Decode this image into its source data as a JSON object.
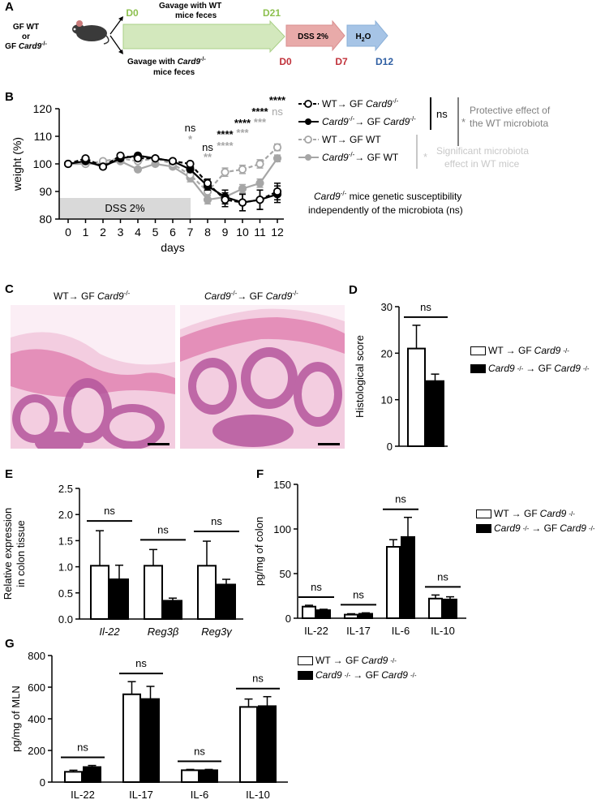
{
  "panel_labels": {
    "a": "A",
    "b": "B",
    "c": "C",
    "d": "D",
    "e": "E",
    "f": "F",
    "g": "G"
  },
  "panel_a": {
    "group_line1": "GF WT",
    "group_line2": "or",
    "group_line3_prefix": "GF ",
    "group_line3_gene": "Card9",
    "group_line3_sup": "-/-",
    "gavage_wt_line1": "Gavage with WT",
    "gavage_wt_line2": "mice feces",
    "gavage_ko_line1_prefix": "Gavage with ",
    "gavage_ko_line1_gene": "Card9",
    "gavage_ko_line1_sup": "-/-",
    "gavage_ko_line2": "mice feces",
    "d0_green": "D0",
    "d21_green": "D21",
    "dss_label": "DSS 2%",
    "h2o_main": "H",
    "h2o_sub": "2",
    "h2o_end": "O",
    "d0_red": "D0",
    "d7_red": "D7",
    "d12_blue": "D12",
    "colors": {
      "green": "#8dc04f",
      "green_fill": "#d3e8bd",
      "red": "#c0313a",
      "red_fill": "#e8aaa9",
      "blue": "#2f5fa3",
      "blue_fill": "#a6c4e6"
    }
  },
  "panel_b": {
    "legend": [
      {
        "pre": "WT",
        "arrow": "→ GF ",
        "gene": "Card9",
        "sup": "-/-",
        "style": "dashed-open-black"
      },
      {
        "pre": "",
        "gene_pre": "Card9",
        "sup_pre": "-/-",
        "arrow": "→ GF ",
        "gene": "Card9",
        "sup": "-/-",
        "style": "solid-filled-black"
      },
      {
        "pre": "WT",
        "arrow": "→ GF WT",
        "style": "dashed-open-grey"
      },
      {
        "gene_pre": "Card9",
        "sup_pre": "-/-",
        "arrow": "→ GF WT",
        "style": "solid-filled-grey"
      }
    ],
    "ns_label": "ns",
    "star": "*",
    "protective_line1": "Protective effect of",
    "protective_line2": "the WT microbiota",
    "significant_line1": "Significant microbiota",
    "significant_line2": "effect in WT mice",
    "genetic_line1_gene": "Card9",
    "genetic_line1_sup": "-/-",
    "genetic_line1_rest": " mice genetic susceptibility",
    "genetic_line2": "independently of the microbiota (ns)",
    "dss_bar_label": "DSS 2%",
    "black_sig": [
      "ns",
      "ns",
      "****",
      "****",
      "****",
      "****"
    ],
    "grey_sig": [
      "*",
      "**",
      "****",
      "***",
      "***",
      "ns"
    ]
  },
  "panel_c": {
    "left_pre": "WT",
    "left_arrow": "→ GF ",
    "left_gene": "Card9",
    "left_sup": "-/-",
    "right_gene_pre": "Card9",
    "right_sup_pre": "-/-",
    "right_arrow": "→ GF ",
    "right_gene": "Card9",
    "right_sup": "-/-"
  },
  "legend_groups": {
    "open_pre": "WT",
    "open_arrow": "→ GF ",
    "gene": "Card9",
    "sup": "-/-",
    "filled_arrow": "→ GF "
  },
  "chart_data": [
    {
      "id": "B",
      "type": "line",
      "xlabel": "days",
      "ylabel": "weight (%)",
      "x": [
        0,
        1,
        2,
        3,
        4,
        5,
        6,
        7,
        8,
        9,
        10,
        11,
        12
      ],
      "ylim": [
        80,
        120
      ],
      "yticks": [
        80,
        90,
        100,
        110,
        120
      ],
      "series": [
        {
          "name": "WT→ GF Card9-/-",
          "values": [
            100,
            102,
            99,
            103,
            102,
            102,
            101,
            100,
            93,
            87,
            86,
            87,
            90
          ],
          "err": [
            0.5,
            0.6,
            0.8,
            0.8,
            0.8,
            0.6,
            0.8,
            0.8,
            1.5,
            2.5,
            3,
            3.5,
            3
          ]
        },
        {
          "name": "Card9-/-→ GF Card9-/-",
          "values": [
            100,
            101,
            99,
            102,
            103,
            102,
            101,
            98,
            92,
            88,
            86,
            87,
            89
          ],
          "err": [
            0.5,
            0.6,
            0.8,
            0.8,
            0.8,
            0.6,
            0.8,
            0.8,
            1.5,
            2.5,
            3,
            3.5,
            3
          ]
        },
        {
          "name": "WT→ GF WT",
          "values": [
            100,
            100,
            101,
            102,
            101,
            102,
            100,
            96,
            90,
            97,
            98,
            100,
            106
          ],
          "err": [
            0.5,
            0.6,
            0.8,
            0.8,
            0.8,
            0.6,
            0.8,
            1.5,
            1.5,
            1.5,
            1.5,
            1.5,
            1.2
          ]
        },
        {
          "name": "Card9-/-→ GF WT",
          "values": [
            100,
            100,
            100,
            101,
            98,
            100,
            99,
            95,
            87,
            88,
            91,
            93,
            102
          ],
          "err": [
            0.5,
            0.6,
            0.8,
            0.8,
            0.8,
            0.6,
            0.8,
            1.5,
            1.5,
            1.5,
            1.5,
            1.5,
            1.2
          ]
        }
      ]
    },
    {
      "id": "D",
      "type": "bar",
      "ylabel": "Histological score",
      "ylim": [
        0,
        30
      ],
      "yticks": [
        0,
        10,
        20,
        30
      ],
      "categories": [
        ""
      ],
      "series": [
        {
          "name": "WT→ GF Card9-/-",
          "values": [
            21
          ],
          "err": [
            5
          ]
        },
        {
          "name": "Card9-/-→ GF Card9-/-",
          "values": [
            14
          ],
          "err": [
            1.5
          ]
        }
      ],
      "sig": [
        "ns"
      ]
    },
    {
      "id": "E",
      "type": "bar",
      "ylabel_line1": "Relative expression",
      "ylabel_line2": "in colon tissue",
      "ylim": [
        0,
        2.5
      ],
      "yticks": [
        "0.0",
        "0.5",
        "1.0",
        "1.5",
        "2.0",
        "2.5"
      ],
      "categories": [
        "Il-22",
        "Reg3β",
        "Reg3γ"
      ],
      "series": [
        {
          "name": "WT→ GF Card9-/-",
          "values": [
            1.02,
            1.02,
            1.02
          ],
          "err": [
            0.67,
            0.31,
            0.47
          ]
        },
        {
          "name": "Card9-/-→ GF Card9-/-",
          "values": [
            0.76,
            0.35,
            0.66
          ],
          "err": [
            0.27,
            0.05,
            0.1
          ]
        }
      ],
      "sig": [
        "ns",
        "ns",
        "ns"
      ]
    },
    {
      "id": "F",
      "type": "bar",
      "ylabel": "pg/mg of colon",
      "ylim": [
        0,
        150
      ],
      "yticks": [
        0,
        50,
        100,
        150
      ],
      "categories": [
        "IL-22",
        "IL-17",
        "IL-6",
        "IL-10"
      ],
      "series": [
        {
          "name": "WT→ GF Card9-/-",
          "values": [
            13,
            4,
            80,
            22
          ],
          "err": [
            1.5,
            1,
            8,
            4
          ]
        },
        {
          "name": "Card9-/-→ GF Card9-/-",
          "values": [
            9,
            5,
            91,
            21
          ],
          "err": [
            1,
            1,
            22,
            3
          ]
        }
      ],
      "sig": [
        "ns",
        "ns",
        "ns",
        "ns"
      ]
    },
    {
      "id": "G",
      "type": "bar",
      "ylabel": "pg/mg of MLN",
      "ylim": [
        0,
        800
      ],
      "yticks": [
        0,
        200,
        400,
        600,
        800
      ],
      "categories": [
        "IL-22",
        "IL-17",
        "IL-6",
        "IL-10"
      ],
      "series": [
        {
          "name": "WT→ GF Card9-/-",
          "values": [
            65,
            555,
            75,
            475
          ],
          "err": [
            10,
            80,
            5,
            50
          ]
        },
        {
          "name": "Card9-/-→ GF Card9-/-",
          "values": [
            95,
            525,
            75,
            480
          ],
          "err": [
            10,
            80,
            5,
            60
          ]
        }
      ],
      "sig": [
        "ns",
        "ns",
        "ns",
        "ns"
      ]
    }
  ]
}
